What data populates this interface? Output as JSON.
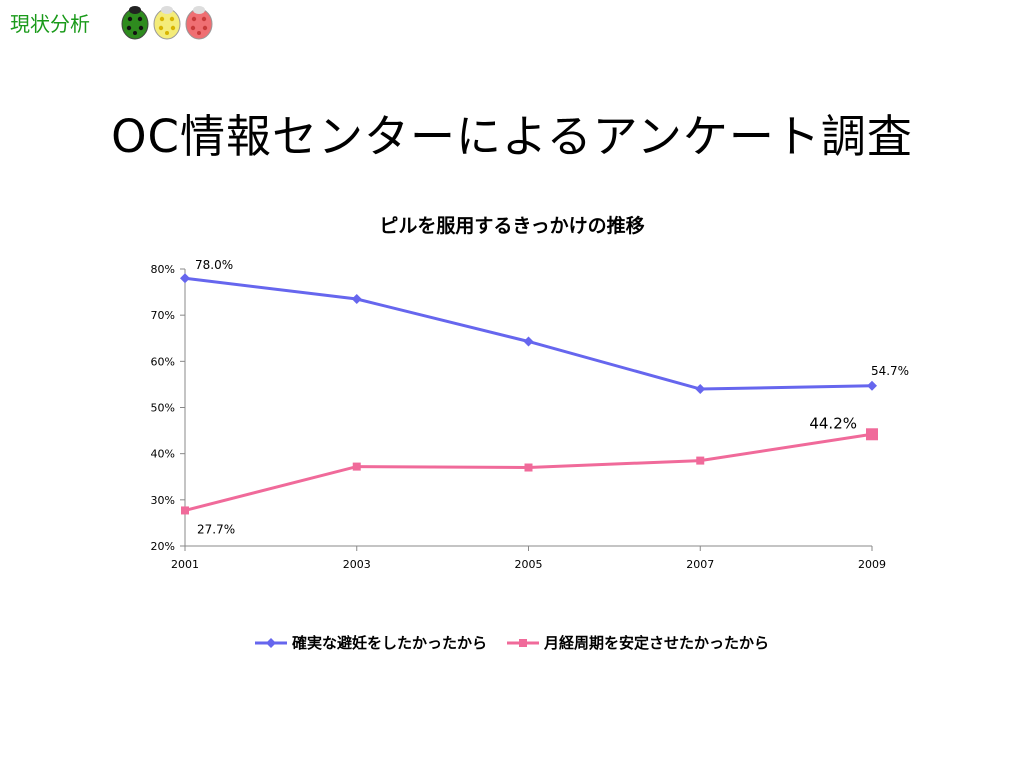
{
  "corner_label": "現状分析",
  "title": "OC情報センターによるアンケート調査",
  "colors": {
    "corner_label": "#1a9a1a",
    "bug_green": "#2e8b1e",
    "bug_yellow": "#f4ec7a",
    "bug_red": "#ef6f73"
  },
  "chart_data": {
    "type": "line",
    "title": "ピルを服用するきっかけの推移",
    "x": [
      "2001",
      "2003",
      "2005",
      "2007",
      "2009"
    ],
    "xlabel": "",
    "ylabel": "",
    "ylim": [
      0.2,
      0.8
    ],
    "yticks": [
      "20%",
      "30%",
      "40%",
      "50%",
      "60%",
      "70%",
      "80%"
    ],
    "grid": false,
    "legend_position": "bottom",
    "series": [
      {
        "name": "確実な避妊をしたかったから",
        "color": "#6666ee",
        "marker": "diamond",
        "values": [
          0.78,
          0.735,
          0.643,
          0.54,
          0.547
        ],
        "labels": [
          "78.0%",
          "",
          "",
          "",
          "54.7%"
        ]
      },
      {
        "name": "月経周期を安定させたかったから",
        "color": "#f06a9a",
        "marker": "square",
        "values": [
          0.277,
          0.372,
          0.37,
          0.385,
          0.442
        ],
        "labels": [
          "27.7%",
          "",
          "",
          "",
          "44.2%"
        ]
      }
    ]
  }
}
